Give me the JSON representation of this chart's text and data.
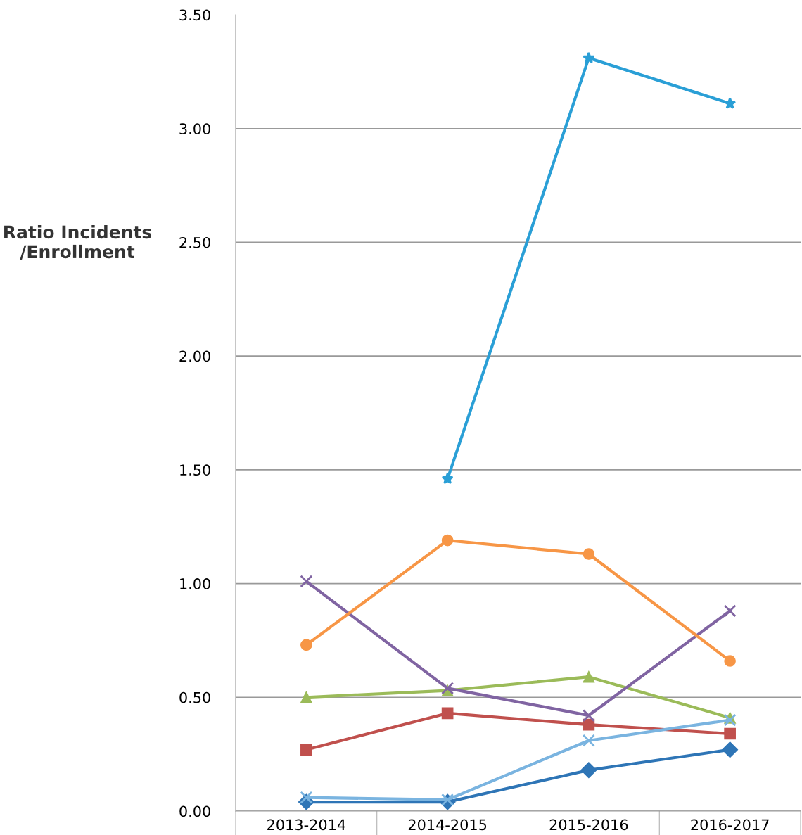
{
  "chart_data": {
    "type": "line",
    "ylabel": "Ratio Incidents\n/Enrollment",
    "categories": [
      "2013-2014",
      "2014-2015",
      "2015-2016",
      "2016-2017"
    ],
    "series": [
      {
        "color": "#2e75b6",
        "marker": "diamond",
        "values": [
          0.04,
          0.04,
          0.18,
          0.27
        ]
      },
      {
        "color": "#c0504d",
        "marker": "square",
        "values": [
          0.27,
          0.43,
          0.38,
          0.34
        ]
      },
      {
        "color": "#9bbb59",
        "marker": "triangle",
        "values": [
          0.5,
          0.53,
          0.59,
          0.41
        ]
      },
      {
        "color": "#8064a2",
        "marker": "cross",
        "values": [
          1.01,
          0.54,
          0.42,
          0.88
        ]
      },
      {
        "color": "#2a9fd6",
        "marker": "star",
        "values": [
          null,
          1.46,
          3.31,
          3.11
        ]
      },
      {
        "color": "#f79646",
        "marker": "circle",
        "values": [
          0.73,
          1.19,
          1.13,
          0.66
        ]
      },
      {
        "color": "#7ab4e0",
        "marker": "cross",
        "values": [
          0.06,
          0.05,
          0.31,
          0.4
        ]
      }
    ],
    "ylim": [
      0,
      3.5
    ],
    "yticks": [
      {
        "value": 0,
        "label": "0.00"
      },
      {
        "value": 0.5,
        "label": "0.50"
      },
      {
        "value": 1,
        "label": "1.00"
      },
      {
        "value": 1.5,
        "label": "1.50"
      },
      {
        "value": 2,
        "label": "2.00"
      },
      {
        "value": 2.5,
        "label": "2.50"
      },
      {
        "value": 3,
        "label": "3.00"
      },
      {
        "value": 3.5,
        "label": "3.50"
      }
    ],
    "grid": "y",
    "line_style": "solid"
  }
}
